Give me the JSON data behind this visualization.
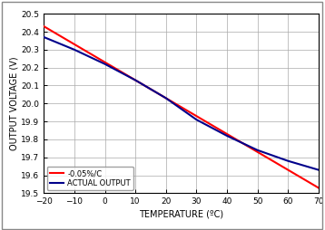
{
  "title": "",
  "xlabel": "TEMPERATURE (ºC)",
  "ylabel": "OUTPUT VOLTAGE (V)",
  "xlim": [
    -20,
    70
  ],
  "ylim": [
    19.5,
    20.5
  ],
  "xticks": [
    -20,
    -10,
    0,
    10,
    20,
    30,
    40,
    50,
    60,
    70
  ],
  "yticks": [
    19.5,
    19.6,
    19.7,
    19.8,
    19.9,
    20.0,
    20.1,
    20.2,
    20.3,
    20.4,
    20.5
  ],
  "line1_label": "-0.05%/C",
  "line1_color": "#ff0000",
  "line1_x": [
    -20,
    -10,
    0,
    10,
    20,
    30,
    40,
    50,
    60,
    70
  ],
  "line1_y": [
    20.43,
    20.33,
    20.23,
    20.13,
    20.03,
    19.93,
    19.83,
    19.73,
    19.63,
    19.53
  ],
  "line2_label": "ACTUAL OUTPUT",
  "line2_color": "#00008b",
  "line2_x": [
    -20,
    -10,
    0,
    10,
    20,
    30,
    40,
    50,
    60,
    70
  ],
  "line2_y": [
    20.37,
    20.3,
    20.22,
    20.13,
    20.03,
    19.91,
    19.82,
    19.74,
    19.68,
    19.63
  ],
  "legend_loc": "lower left",
  "grid_color": "#aaaaaa",
  "line_width": 1.5,
  "xlabel_fontsize": 7,
  "ylabel_fontsize": 7,
  "tick_fontsize": 6.5,
  "legend_fontsize": 6,
  "background_color": "#ffffff",
  "border_color": "#000000",
  "outer_border_color": "#888888"
}
